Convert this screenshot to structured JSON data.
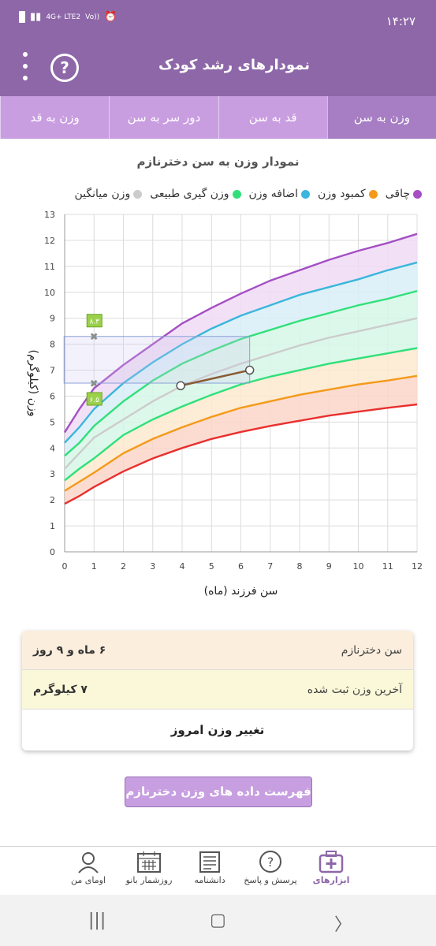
{
  "status": {
    "time": "۱۴:۲۷",
    "network": "4G+ LTE2",
    "signal_icons": "Vo))"
  },
  "header": {
    "title": "نمودارهای رشد کودک"
  },
  "tabs": [
    {
      "label": "وزن به سن",
      "active": true
    },
    {
      "label": "قد به سن",
      "active": false
    },
    {
      "label": "دور سر به سن",
      "active": false
    },
    {
      "label": "وزن به قد",
      "active": false
    }
  ],
  "chart_title": "نمودار وزن به سن دخترنازم",
  "legend": [
    {
      "label": "چاقی",
      "color": "#a44fc4"
    },
    {
      "label": "کمبود وزن",
      "color": "#f39a1a"
    },
    {
      "label": "اضافه وزن",
      "color": "#3bb6dc"
    },
    {
      "label": "وزن گیری طبیعی",
      "color": "#2fe07a"
    },
    {
      "label": "وزن میانگین",
      "color": "#cccccc"
    }
  ],
  "chart_data": {
    "type": "line",
    "xlabel": "سن فرزند (ماه)",
    "ylabel": "وزن (کیلوگرم)",
    "xlim": [
      0,
      12
    ],
    "ylim": [
      0,
      13
    ],
    "x": [
      0,
      0.5,
      1,
      2,
      3,
      4,
      5,
      6,
      7,
      8,
      9,
      10,
      11,
      12
    ],
    "series": [
      {
        "name": "چاقی",
        "color": "#a44fc4",
        "values": [
          4.6,
          5.5,
          6.3,
          7.2,
          8.0,
          8.8,
          9.4,
          9.95,
          10.45,
          10.85,
          11.25,
          11.6,
          11.9,
          12.25
        ]
      },
      {
        "name": "اضافه وزن",
        "color": "#3bb6dc",
        "values": [
          4.2,
          4.8,
          5.5,
          6.5,
          7.3,
          8.0,
          8.6,
          9.1,
          9.5,
          9.9,
          10.2,
          10.5,
          10.85,
          11.15
        ]
      },
      {
        "name": "وزن گیری طبیعی",
        "color": "#2fe07a",
        "values": [
          3.7,
          4.2,
          4.85,
          5.8,
          6.6,
          7.25,
          7.75,
          8.2,
          8.55,
          8.9,
          9.2,
          9.5,
          9.75,
          10.05
        ]
      },
      {
        "name": "وزن میانگین",
        "color": "#cccccc",
        "values": [
          3.2,
          3.8,
          4.4,
          5.1,
          5.8,
          6.4,
          6.85,
          7.25,
          7.6,
          7.95,
          8.25,
          8.5,
          8.75,
          9.0
        ]
      },
      {
        "name": "",
        "color": "#2fe07a",
        "values": [
          2.75,
          3.2,
          3.6,
          4.5,
          5.1,
          5.6,
          6.05,
          6.45,
          6.75,
          7.0,
          7.25,
          7.45,
          7.65,
          7.85
        ]
      },
      {
        "name": "کمبود وزن",
        "color": "#f39a1a",
        "values": [
          2.35,
          2.7,
          3.05,
          3.8,
          4.35,
          4.8,
          5.2,
          5.55,
          5.8,
          6.05,
          6.25,
          6.45,
          6.6,
          6.78
        ]
      },
      {
        "name": "",
        "color": "#e8302e",
        "values": [
          1.85,
          2.15,
          2.5,
          3.1,
          3.6,
          4.0,
          4.35,
          4.62,
          4.85,
          5.05,
          5.25,
          5.4,
          5.55,
          5.68
        ]
      }
    ],
    "child_points": [
      {
        "x": 3.95,
        "y": 6.4
      },
      {
        "x": 6.3,
        "y": 7.0
      }
    ],
    "child_line_color": "#8a5a33",
    "range_markers": {
      "month": 1,
      "high": 8.3,
      "low": 6.5,
      "high_label": "۸.۳",
      "low_label": "۶.۵",
      "x_to": 6.3
    }
  },
  "info": {
    "age_label": "سن دخترنازم",
    "age_value": "۶ ماه و ۹ روز",
    "weight_label": "آخرین وزن ثبت شده",
    "weight_value": "۷ کیلوگرم",
    "change_weight": "تغییر وزن امروز"
  },
  "list_button": "فهرست داده های وزن دخترنازم",
  "bottom_nav": [
    {
      "label": "ابزارهای",
      "icon": "medical-kit-icon",
      "active": true
    },
    {
      "label": "پرسش و پاسخ",
      "icon": "question-bubble-icon",
      "active": false
    },
    {
      "label": "دانشنامه",
      "icon": "newspaper-icon",
      "active": false
    },
    {
      "label": "روزشمار بانو",
      "icon": "calendar-icon",
      "active": false
    },
    {
      "label": "اومای من",
      "icon": "woman-avatar-icon",
      "active": false
    }
  ]
}
